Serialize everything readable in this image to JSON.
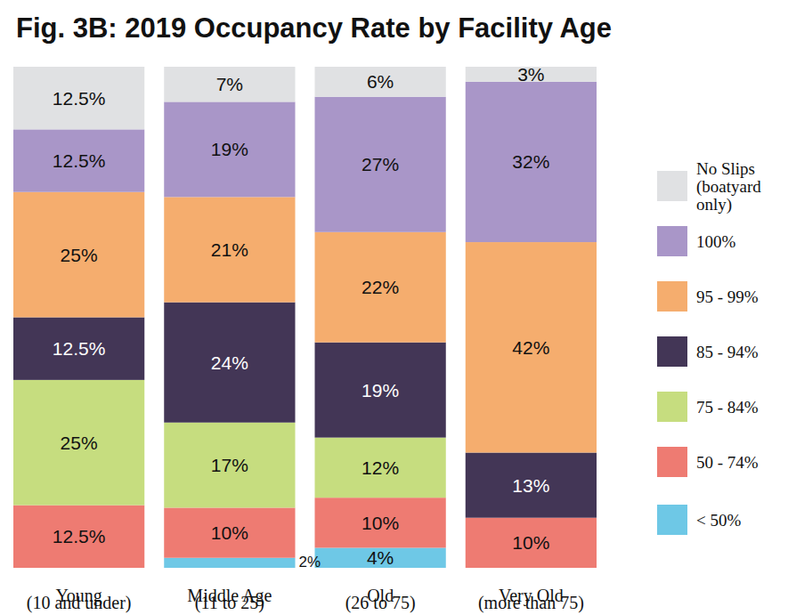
{
  "chart_data": {
    "type": "bar",
    "title": "Fig. 3B: 2019 Occupancy Rate by Facility Age",
    "categories": [
      "Young (10 and under)",
      "Middle Age (11 to 25)",
      "Old (26 to 75)",
      "Very Old (more than 75)"
    ],
    "stacked": true,
    "data_labels": true,
    "legend": "right",
    "tick_labels": "x",
    "ylim": [
      0,
      100
    ],
    "series": [
      {
        "name": "No Slips (boatyard only)",
        "color": "#e0e1e3",
        "values": [
          12.5,
          7,
          6,
          3
        ],
        "value_labels": [
          "12.5%",
          "7%",
          "6%",
          "3%"
        ]
      },
      {
        "name": "100%",
        "color": "#a996c8",
        "values": [
          12.5,
          19,
          27,
          32
        ],
        "value_labels": [
          "12.5%",
          "19%",
          "27%",
          "32%"
        ]
      },
      {
        "name": "95 - 99%",
        "color": "#f5ad6e",
        "values": [
          25,
          21,
          22,
          42
        ],
        "value_labels": [
          "25%",
          "21%",
          "22%",
          "42%"
        ]
      },
      {
        "name": "85 - 94%",
        "color": "#433656",
        "values": [
          12.5,
          24,
          19,
          13
        ],
        "value_labels": [
          "12.5%",
          "24%",
          "19%",
          "13%"
        ]
      },
      {
        "name": "75 - 84%",
        "color": "#c6dd7f",
        "values": [
          25,
          17,
          12,
          null
        ],
        "value_labels": [
          "25%",
          "17%",
          "12%",
          null
        ]
      },
      {
        "name": "50 - 74%",
        "color": "#ee7b72",
        "values": [
          12.5,
          10,
          10,
          10
        ],
        "value_labels": [
          "12.5%",
          "10%",
          "10%",
          "10%"
        ]
      },
      {
        "name": "< 50%",
        "color": "#6ec8e6",
        "values": [
          null,
          2,
          4,
          null
        ],
        "value_labels": [
          null,
          "2%",
          "4%",
          null
        ]
      }
    ]
  }
}
